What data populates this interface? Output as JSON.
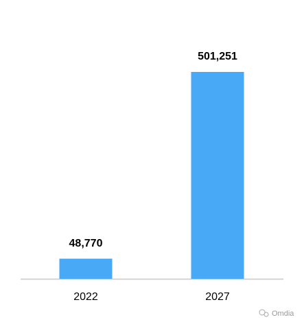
{
  "chart_data": {
    "type": "bar",
    "categories": [
      "2022",
      "2027"
    ],
    "values": [
      48770,
      501251
    ],
    "value_labels": [
      "48,770",
      "501,251"
    ],
    "color": "#48aaf7",
    "watermark": "Omdia"
  }
}
